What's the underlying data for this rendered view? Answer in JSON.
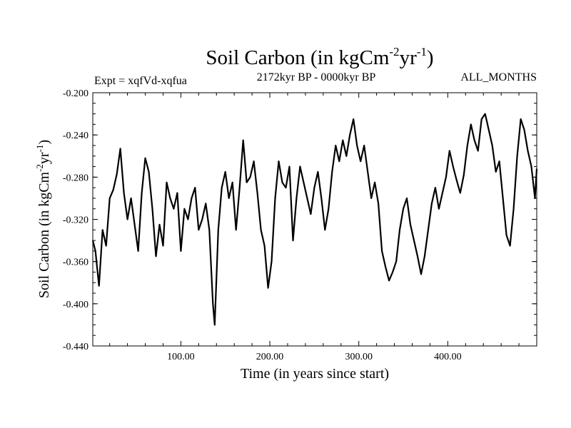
{
  "chart_data": {
    "type": "line",
    "title_main": "Soil Carbon (in kgCm",
    "title_sup1": "-2",
    "title_mid": "yr",
    "title_sup2": "-1",
    "title_end": ")",
    "subtitle_left": "Expt = xqfVd-xqfua",
    "subtitle_center": "2172kyr BP - 0000kyr BP",
    "subtitle_right": "ALL_MONTHS",
    "xlabel": "Time (in years since start)",
    "ylabel_main": "Soil Carbon (in kgCm",
    "ylabel_sup1": "-2",
    "ylabel_mid": "yr",
    "ylabel_sup2": "-1",
    "ylabel_end": ")",
    "xlim": [
      1,
      500
    ],
    "ylim": [
      -0.44,
      -0.2
    ],
    "xticks": [
      {
        "value": 100,
        "label": "100.00"
      },
      {
        "value": 200,
        "label": "200.00"
      },
      {
        "value": 300,
        "label": "300.00"
      },
      {
        "value": 400,
        "label": "400.00"
      }
    ],
    "yticks": [
      {
        "value": -0.2,
        "label": "-0.200"
      },
      {
        "value": -0.24,
        "label": "-0.240"
      },
      {
        "value": -0.28,
        "label": "-0.280"
      },
      {
        "value": -0.32,
        "label": "-0.320"
      },
      {
        "value": -0.36,
        "label": "-0.360"
      },
      {
        "value": -0.4,
        "label": "-0.400"
      },
      {
        "value": -0.44,
        "label": "-0.440"
      }
    ],
    "series": [
      {
        "name": "Soil Carbon",
        "color": "#000000",
        "x": [
          1,
          4,
          8,
          12,
          16,
          20,
          24,
          28,
          32,
          36,
          40,
          44,
          48,
          52,
          56,
          60,
          64,
          68,
          72,
          76,
          80,
          84,
          88,
          92,
          96,
          100,
          104,
          108,
          112,
          116,
          120,
          124,
          128,
          132,
          136,
          138,
          142,
          146,
          150,
          154,
          158,
          162,
          166,
          170,
          174,
          178,
          182,
          186,
          190,
          194,
          198,
          202,
          206,
          210,
          214,
          218,
          222,
          226,
          230,
          234,
          238,
          242,
          246,
          250,
          254,
          258,
          262,
          266,
          270,
          274,
          278,
          282,
          286,
          290,
          294,
          298,
          302,
          306,
          310,
          314,
          318,
          322,
          326,
          330,
          334,
          338,
          342,
          346,
          350,
          354,
          358,
          362,
          366,
          370,
          374,
          378,
          382,
          386,
          390,
          394,
          398,
          402,
          406,
          410,
          414,
          418,
          422,
          426,
          430,
          434,
          438,
          442,
          446,
          450,
          454,
          458,
          462,
          466,
          470,
          474,
          478,
          482,
          486,
          490,
          494,
          498,
          500
        ],
        "values": [
          -0.34,
          -0.35,
          -0.383,
          -0.33,
          -0.345,
          -0.3,
          -0.292,
          -0.277,
          -0.253,
          -0.295,
          -0.32,
          -0.3,
          -0.325,
          -0.35,
          -0.295,
          -0.262,
          -0.275,
          -0.31,
          -0.355,
          -0.325,
          -0.345,
          -0.285,
          -0.3,
          -0.31,
          -0.295,
          -0.35,
          -0.31,
          -0.32,
          -0.3,
          -0.29,
          -0.33,
          -0.32,
          -0.305,
          -0.33,
          -0.4,
          -0.42,
          -0.33,
          -0.29,
          -0.275,
          -0.3,
          -0.285,
          -0.33,
          -0.29,
          -0.245,
          -0.285,
          -0.28,
          -0.265,
          -0.295,
          -0.33,
          -0.345,
          -0.385,
          -0.36,
          -0.3,
          -0.265,
          -0.285,
          -0.29,
          -0.27,
          -0.34,
          -0.3,
          -0.27,
          -0.285,
          -0.3,
          -0.315,
          -0.29,
          -0.275,
          -0.3,
          -0.33,
          -0.31,
          -0.275,
          -0.25,
          -0.265,
          -0.245,
          -0.26,
          -0.24,
          -0.225,
          -0.25,
          -0.265,
          -0.25,
          -0.275,
          -0.3,
          -0.285,
          -0.305,
          -0.35,
          -0.365,
          -0.378,
          -0.37,
          -0.36,
          -0.33,
          -0.31,
          -0.3,
          -0.325,
          -0.34,
          -0.355,
          -0.372,
          -0.355,
          -0.33,
          -0.305,
          -0.29,
          -0.31,
          -0.295,
          -0.28,
          -0.255,
          -0.27,
          -0.283,
          -0.295,
          -0.278,
          -0.25,
          -0.23,
          -0.245,
          -0.255,
          -0.225,
          -0.22,
          -0.235,
          -0.25,
          -0.275,
          -0.265,
          -0.3,
          -0.335,
          -0.345,
          -0.31,
          -0.26,
          -0.225,
          -0.235,
          -0.255,
          -0.27,
          -0.3,
          -0.272
        ]
      }
    ]
  }
}
